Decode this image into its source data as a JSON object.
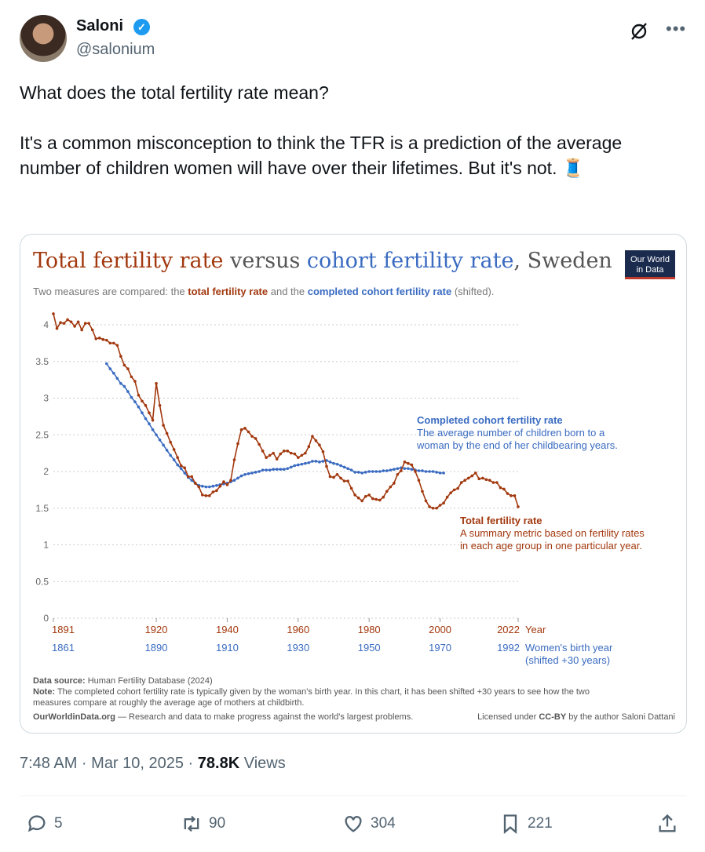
{
  "tweet": {
    "author_name": "Saloni",
    "author_handle": "@salonium",
    "text_p1": "What does the total fertility rate mean?",
    "text_p2": "It's a common misconception to think the TFR is a prediction of the average number of children women will have over their lifetimes. But it's not. 🧵",
    "time": "7:48 AM · Mar 10, 2025 · ",
    "views_count": "78.8K",
    "views_label": " Views",
    "actions": {
      "replies": "5",
      "reposts": "90",
      "likes": "304",
      "bookmarks": "221"
    }
  },
  "chart_data": {
    "type": "line",
    "title_part1": "Total fertility rate",
    "title_part2": " versus ",
    "title_part3": "cohort fertility rate",
    "title_part4": ", Sweden",
    "subtitle_part1": "Two measures are compared: the ",
    "subtitle_part2": "total fertility rate",
    "subtitle_part3": " and the ",
    "subtitle_part4": "completed cohort fertility rate",
    "subtitle_part5": " (shifted).",
    "logo_text": [
      "Our World",
      "in Data"
    ],
    "ylim": [
      0,
      4.2
    ],
    "xlim": [
      1891,
      2022
    ],
    "y_ticks": [
      "0",
      "0.5",
      "1",
      "1.5",
      "2",
      "2.5",
      "3",
      "3.5",
      "4"
    ],
    "x_ticks_year": [
      "1891",
      "1920",
      "1940",
      "1960",
      "1980",
      "2000",
      "2022"
    ],
    "x_ticks_birth": [
      "1861",
      "1890",
      "1910",
      "1930",
      "1950",
      "1970",
      "1992"
    ],
    "x_axis_label": "Year",
    "x_axis_label2": "Women's birth year",
    "x_axis_label3": "(shifted +30 years)",
    "colors": {
      "tfr": "#a2380e",
      "cohort": "#3a6bc1"
    },
    "series": [
      {
        "name": "Total fertility rate",
        "description_1": "A summary metric based on fertility rates",
        "description_2": "in each age group in one particular year.",
        "start_year": 1891,
        "values": [
          4.15,
          3.95,
          4.03,
          4.02,
          4.07,
          4.04,
          3.98,
          4.04,
          3.93,
          4.02,
          4.02,
          3.93,
          3.81,
          3.82,
          3.8,
          3.79,
          3.75,
          3.75,
          3.72,
          3.57,
          3.45,
          3.4,
          3.29,
          3.23,
          3.04,
          2.96,
          2.9,
          2.8,
          2.7,
          3.2,
          2.9,
          2.63,
          2.52,
          2.4,
          2.3,
          2.19,
          2.08,
          2.05,
          1.93,
          1.93,
          1.84,
          1.79,
          1.68,
          1.67,
          1.67,
          1.72,
          1.74,
          1.8,
          1.86,
          1.82,
          1.88,
          2.16,
          2.38,
          2.57,
          2.59,
          2.54,
          2.48,
          2.45,
          2.37,
          2.28,
          2.19,
          2.22,
          2.25,
          2.17,
          2.24,
          2.28,
          2.28,
          2.25,
          2.24,
          2.19,
          2.22,
          2.25,
          2.34,
          2.48,
          2.42,
          2.36,
          2.27,
          2.07,
          1.93,
          1.92,
          1.96,
          1.91,
          1.87,
          1.87,
          1.77,
          1.68,
          1.64,
          1.6,
          1.66,
          1.68,
          1.63,
          1.62,
          1.61,
          1.65,
          1.73,
          1.79,
          1.84,
          1.96,
          2.01,
          2.13,
          2.11,
          2.09,
          2.0,
          1.88,
          1.73,
          1.6,
          1.52,
          1.5,
          1.5,
          1.54,
          1.57,
          1.65,
          1.71,
          1.75,
          1.77,
          1.85,
          1.88,
          1.91,
          1.94,
          1.98,
          1.9,
          1.91,
          1.89,
          1.88,
          1.85,
          1.85,
          1.78,
          1.76,
          1.7,
          1.67,
          1.67,
          1.52
        ]
      },
      {
        "name": "Completed cohort fertility rate",
        "description_1": "The average number of children born to a",
        "description_2": "woman by the end of her childbearing years.",
        "start_year": 1906,
        "values": [
          3.47,
          3.4,
          3.34,
          3.27,
          3.2,
          3.16,
          3.09,
          3.01,
          2.95,
          2.88,
          2.8,
          2.72,
          2.65,
          2.57,
          2.5,
          2.43,
          2.36,
          2.29,
          2.22,
          2.16,
          2.09,
          2.04,
          1.98,
          1.92,
          1.88,
          1.84,
          1.81,
          1.8,
          1.79,
          1.79,
          1.8,
          1.81,
          1.82,
          1.83,
          1.84,
          1.86,
          1.88,
          1.91,
          1.94,
          1.96,
          1.97,
          1.98,
          1.99,
          2.0,
          2.02,
          2.02,
          2.02,
          2.03,
          2.03,
          2.03,
          2.03,
          2.04,
          2.06,
          2.08,
          2.09,
          2.1,
          2.11,
          2.12,
          2.14,
          2.14,
          2.13,
          2.14,
          2.15,
          2.13,
          2.11,
          2.1,
          2.08,
          2.06,
          2.04,
          2.02,
          1.99,
          1.99,
          1.98,
          1.99,
          2.0,
          2.0,
          2.0,
          2.0,
          2.01,
          2.01,
          2.02,
          2.03,
          2.04,
          2.05,
          2.04,
          2.04,
          2.03,
          2.02,
          2.01,
          2.01,
          2.0,
          2.0,
          2.0,
          1.99,
          1.98,
          1.98
        ]
      }
    ],
    "source_label": "Data source:",
    "source": " Human Fertility Database (2024)",
    "note_label": "Note:",
    "note_1": " The completed cohort fertility rate is typically given by the woman's birth year. In this chart, it has been shifted +30 years to see how the two",
    "note_2": "measures compare at roughly the average age of mothers at childbirth.",
    "footer_site": "OurWorldinData.org",
    "footer_tagline": " — Research and data to make progress against the world's largest problems.",
    "license_1": "Licensed under ",
    "license_2": "CC-BY",
    "license_3": " by the author Saloni Dattani"
  }
}
